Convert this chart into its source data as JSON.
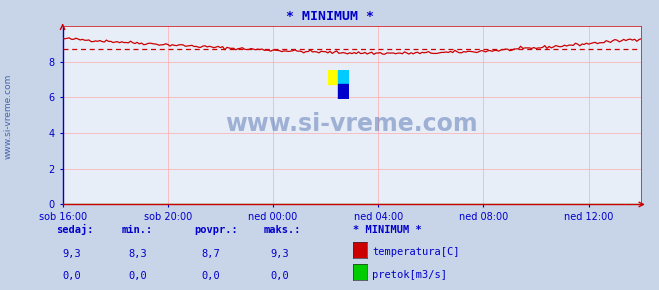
{
  "title": "* MINIMUM *",
  "title_color": "#0000cc",
  "bg_color": "#c8d4e8",
  "plot_bg_color": "#e8eef8",
  "grid_color_v": "#ffaaaa",
  "grid_color_h": "#ddaaaa",
  "axis_color": "#cc0000",
  "spine_color": "#0000cc",
  "temp_color": "#cc0000",
  "flow_color": "#00aa00",
  "watermark_text": "www.si-vreme.com",
  "watermark_color": "#4466aa",
  "ylabel_text": "www.si-vreme.com",
  "ylabel_color": "#4466aa",
  "x_labels": [
    "sob 16:00",
    "sob 20:00",
    "ned 00:00",
    "ned 04:00",
    "ned 08:00",
    "ned 12:00"
  ],
  "x_ticks": [
    0,
    48,
    96,
    144,
    192,
    240
  ],
  "x_max": 264,
  "ylim": [
    0,
    10
  ],
  "y_ticks": [
    0,
    2,
    4,
    6,
    8
  ],
  "min_val": 8.3,
  "avg_val": 8.7,
  "max_val": 9.3,
  "curr_val": 9.3,
  "legend_title": "* MINIMUM *",
  "legend_items": [
    {
      "label": "temperatura[C]",
      "color": "#cc0000"
    },
    {
      "label": "pretok[m3/s]",
      "color": "#00cc00"
    }
  ],
  "table_headers": [
    "sedaj:",
    "min.:",
    "povpr.:",
    "maks.:"
  ],
  "table_temp": [
    "9,3",
    "8,3",
    "8,7",
    "9,3"
  ],
  "table_flow": [
    "0,0",
    "0,0",
    "0,0",
    "0,0"
  ],
  "text_color": "#0000cc",
  "logo_colors": [
    "#ffff00",
    "#00ccff",
    "#0000cc"
  ]
}
